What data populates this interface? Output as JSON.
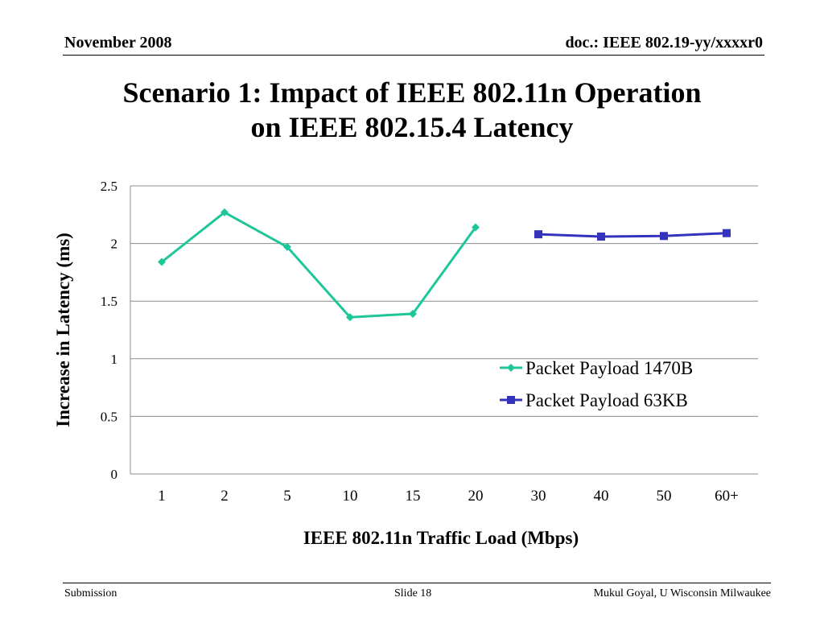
{
  "header": {
    "date": "November 2008",
    "doc_id": "doc.: IEEE 802.19-yy/xxxxr0"
  },
  "title_lines": [
    "Scenario 1: Impact of IEEE 802.11n Operation",
    "on IEEE 802.15.4 Latency"
  ],
  "chart_data": {
    "type": "line",
    "categories": [
      "1",
      "2",
      "5",
      "10",
      "15",
      "20",
      "30",
      "40",
      "50",
      "60+"
    ],
    "series": [
      {
        "name": "Packet Payload 1470B",
        "color": "#1fc69a",
        "marker": "diamond",
        "values": [
          1.84,
          2.27,
          1.97,
          1.36,
          1.39,
          2.14,
          null,
          null,
          null,
          null
        ]
      },
      {
        "name": "Packet Payload 63KB",
        "color": "#3333bb",
        "marker": "square",
        "values": [
          null,
          null,
          null,
          null,
          null,
          null,
          2.08,
          2.06,
          2.065,
          2.09
        ]
      }
    ],
    "xlabel": "IEEE 802.11n Traffic Load (Mbps)",
    "ylabel": "Increase in Latency (ms)",
    "ylim": [
      0,
      2.5
    ],
    "yticks": [
      "0",
      "0.5",
      "1",
      "1.5",
      "2",
      "2.5"
    ],
    "grid": true,
    "legend": "right"
  },
  "footer": {
    "left": "Submission",
    "center": "Slide 18",
    "right": "Mukul Goyal, U Wisconsin Milwaukee"
  }
}
